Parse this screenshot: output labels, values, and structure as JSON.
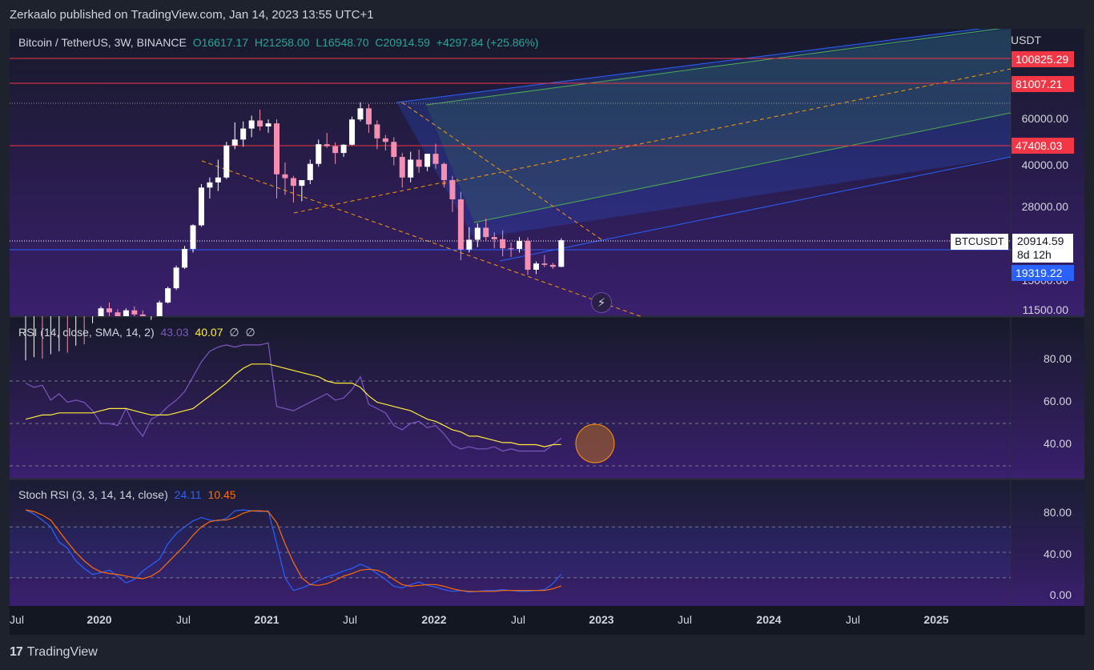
{
  "header": {
    "published": "Zerkaalo published on TradingView.com, Jan 14, 2023 13:55 UTC+1"
  },
  "legend": {
    "symbol": "Bitcoin / TetherUS, 3W, BINANCE",
    "open": "O16617.17",
    "high": "H21258.00",
    "low": "L16548.70",
    "close": "C20914.59",
    "change": "+4297.84 (+25.86%)"
  },
  "rsi_legend": {
    "title": "RSI (14, close, SMA, 14, 2)",
    "rsi_value": "43.03",
    "ma_value": "40.07",
    "null1": "∅",
    "null2": "∅"
  },
  "stoch_legend": {
    "title": "Stoch RSI (3, 3, 14, 14, close)",
    "k_value": "24.11",
    "d_value": "10.45"
  },
  "price_axis": {
    "currency": "USDT",
    "ticks": [
      "60000.00",
      "40000.00",
      "28000.00",
      "11500.00"
    ],
    "partial_tick": "15000.00",
    "tags": [
      {
        "label": "100825.29",
        "color": "#f23645"
      },
      {
        "label": "81007.21",
        "color": "#f23645"
      },
      {
        "label": "47408.03",
        "color": "#f23645"
      },
      {
        "label": "19319.22",
        "color": "#2962ff"
      }
    ],
    "symbol_tag": "BTCUSDT",
    "last_price": "20914.59",
    "countdown": "8d 12h"
  },
  "rsi_axis": {
    "ticks": [
      "80.00",
      "60.00",
      "40.00"
    ]
  },
  "stoch_axis": {
    "ticks": [
      "80.00",
      "40.00",
      "0.00"
    ]
  },
  "time_axis": [
    {
      "label": "Jul",
      "major": false
    },
    {
      "label": "2020",
      "major": true
    },
    {
      "label": "Jul",
      "major": false
    },
    {
      "label": "2021",
      "major": true
    },
    {
      "label": "Jul",
      "major": false
    },
    {
      "label": "2022",
      "major": true
    },
    {
      "label": "Jul",
      "major": false
    },
    {
      "label": "2023",
      "major": true
    },
    {
      "label": "Jul",
      "major": false
    },
    {
      "label": "2024",
      "major": true
    },
    {
      "label": "Jul",
      "major": false
    },
    {
      "label": "2025",
      "major": true
    }
  ],
  "footer": {
    "brand": "TradingView",
    "logo": "17"
  },
  "icons": {
    "flash": "lightning-icon"
  },
  "colors": {
    "up": "#ffffff",
    "down": "#f48fb1",
    "rsi": "#7e57c2",
    "rsi_ma": "#ffeb3b",
    "stoch_k": "#2962ff",
    "stoch_d": "#ff6d00",
    "resistance": "#f23645",
    "support": "#2962ff"
  },
  "chart_data": {
    "type": "candlestick",
    "timeframe": "3W",
    "y_scale": "log",
    "horizontal_levels": [
      100825.29,
      81007.21,
      47408.03,
      19319.22
    ],
    "candles": [
      {
        "o": 7100,
        "h": 7400,
        "l": 6900,
        "c": 7200
      },
      {
        "o": 7200,
        "h": 7600,
        "l": 7000,
        "c": 7300
      },
      {
        "o": 7300,
        "h": 7500,
        "l": 6500,
        "c": 6700
      },
      {
        "o": 6700,
        "h": 7800,
        "l": 6600,
        "c": 7500
      },
      {
        "o": 7500,
        "h": 8000,
        "l": 7300,
        "c": 7700
      },
      {
        "o": 7700,
        "h": 7900,
        "l": 7400,
        "c": 7600
      },
      {
        "o": 7600,
        "h": 8400,
        "l": 7500,
        "c": 8200
      },
      {
        "o": 8200,
        "h": 8500,
        "l": 7600,
        "c": 7800
      },
      {
        "o": 7800,
        "h": 10200,
        "l": 7700,
        "c": 10000
      },
      {
        "o": 10000,
        "h": 11800,
        "l": 9800,
        "c": 11600
      },
      {
        "o": 11600,
        "h": 12200,
        "l": 10800,
        "c": 11200
      },
      {
        "o": 11200,
        "h": 11500,
        "l": 10200,
        "c": 10600
      },
      {
        "o": 10600,
        "h": 11600,
        "l": 10400,
        "c": 11400
      },
      {
        "o": 11400,
        "h": 11800,
        "l": 10800,
        "c": 11000
      },
      {
        "o": 11000,
        "h": 11400,
        "l": 8800,
        "c": 9200
      },
      {
        "o": 9200,
        "h": 10500,
        "l": 9000,
        "c": 10300
      },
      {
        "o": 10300,
        "h": 12400,
        "l": 10100,
        "c": 12200
      },
      {
        "o": 12200,
        "h": 14000,
        "l": 12100,
        "c": 13800
      },
      {
        "o": 13800,
        "h": 16800,
        "l": 13600,
        "c": 16500
      },
      {
        "o": 16500,
        "h": 19900,
        "l": 16300,
        "c": 19400
      },
      {
        "o": 19400,
        "h": 24000,
        "l": 18800,
        "c": 23800
      },
      {
        "o": 23800,
        "h": 34000,
        "l": 23500,
        "c": 33000
      },
      {
        "o": 33000,
        "h": 36000,
        "l": 30000,
        "c": 34500
      },
      {
        "o": 34500,
        "h": 42000,
        "l": 32000,
        "c": 36000
      },
      {
        "o": 36000,
        "h": 49000,
        "l": 35500,
        "c": 47500
      },
      {
        "o": 47500,
        "h": 58000,
        "l": 46000,
        "c": 50000
      },
      {
        "o": 50000,
        "h": 58500,
        "l": 47000,
        "c": 55000
      },
      {
        "o": 55000,
        "h": 61500,
        "l": 51000,
        "c": 59000
      },
      {
        "o": 59000,
        "h": 64800,
        "l": 54000,
        "c": 56000
      },
      {
        "o": 56000,
        "h": 59500,
        "l": 53000,
        "c": 57500
      },
      {
        "o": 57500,
        "h": 59600,
        "l": 30000,
        "c": 37000
      },
      {
        "o": 37000,
        "h": 41000,
        "l": 31000,
        "c": 35800
      },
      {
        "o": 35800,
        "h": 36500,
        "l": 29000,
        "c": 33500
      },
      {
        "o": 33500,
        "h": 35000,
        "l": 29300,
        "c": 35200
      },
      {
        "o": 35200,
        "h": 42000,
        "l": 34000,
        "c": 40500
      },
      {
        "o": 40500,
        "h": 50000,
        "l": 39500,
        "c": 48000
      },
      {
        "o": 48000,
        "h": 52900,
        "l": 46500,
        "c": 47200
      },
      {
        "o": 47200,
        "h": 48800,
        "l": 40500,
        "c": 44500
      },
      {
        "o": 44500,
        "h": 48000,
        "l": 43000,
        "c": 47800
      },
      {
        "o": 47800,
        "h": 61000,
        "l": 47500,
        "c": 59500
      },
      {
        "o": 59500,
        "h": 69000,
        "l": 58500,
        "c": 65500
      },
      {
        "o": 65500,
        "h": 68000,
        "l": 53000,
        "c": 57000
      },
      {
        "o": 57000,
        "h": 59000,
        "l": 46000,
        "c": 50500
      },
      {
        "o": 50500,
        "h": 52000,
        "l": 45500,
        "c": 49000
      },
      {
        "o": 49000,
        "h": 51000,
        "l": 40000,
        "c": 43000
      },
      {
        "o": 43000,
        "h": 44500,
        "l": 33000,
        "c": 36000
      },
      {
        "o": 36000,
        "h": 45000,
        "l": 34500,
        "c": 42000
      },
      {
        "o": 42000,
        "h": 45800,
        "l": 37500,
        "c": 39500
      },
      {
        "o": 39500,
        "h": 44000,
        "l": 38000,
        "c": 44200
      },
      {
        "o": 44200,
        "h": 48200,
        "l": 38800,
        "c": 40500
      },
      {
        "o": 40500,
        "h": 41000,
        "l": 33000,
        "c": 35200
      },
      {
        "o": 35200,
        "h": 36500,
        "l": 26700,
        "c": 29800
      },
      {
        "o": 29800,
        "h": 31800,
        "l": 17600,
        "c": 19300
      },
      {
        "o": 19300,
        "h": 23400,
        "l": 18800,
        "c": 21000
      },
      {
        "o": 21000,
        "h": 24200,
        "l": 19700,
        "c": 23300
      },
      {
        "o": 23300,
        "h": 25200,
        "l": 20800,
        "c": 21500
      },
      {
        "o": 21500,
        "h": 22400,
        "l": 19500,
        "c": 21100
      },
      {
        "o": 21100,
        "h": 22800,
        "l": 18200,
        "c": 19500
      },
      {
        "o": 19500,
        "h": 20500,
        "l": 18100,
        "c": 19400
      },
      {
        "o": 19400,
        "h": 21500,
        "l": 18800,
        "c": 20800
      },
      {
        "o": 20800,
        "h": 21400,
        "l": 15500,
        "c": 16200
      },
      {
        "o": 16200,
        "h": 17400,
        "l": 15600,
        "c": 17100
      },
      {
        "o": 17100,
        "h": 18400,
        "l": 16600,
        "c": 16900
      },
      {
        "o": 16900,
        "h": 17200,
        "l": 16300,
        "c": 16617
      },
      {
        "o": 16617.17,
        "h": 21258,
        "l": 16548.7,
        "c": 20914.59
      }
    ],
    "rsi": [
      69,
      67,
      68,
      61,
      64,
      60,
      61,
      60,
      56,
      50,
      50,
      49,
      57,
      49,
      44,
      52,
      54,
      58,
      61,
      65,
      72,
      79,
      84,
      86,
      87,
      86,
      87,
      87,
      87,
      88,
      58,
      57,
      56,
      58,
      60,
      62,
      64,
      61,
      62,
      66,
      72,
      59,
      57,
      55,
      49,
      47,
      50,
      51,
      48,
      49,
      45,
      40,
      38,
      39,
      38,
      38,
      39,
      37,
      38,
      37,
      37,
      37,
      37,
      40,
      43.03
    ],
    "rsi_ma": [
      52,
      53,
      54,
      54,
      55,
      55,
      55,
      55,
      55,
      56,
      57,
      57,
      57,
      56,
      55,
      54,
      54,
      54,
      55,
      56,
      57,
      60,
      63,
      66,
      69,
      73,
      76,
      78,
      78,
      78,
      77,
      76,
      75,
      74,
      73,
      72,
      70,
      69,
      69,
      69,
      67,
      63,
      60,
      59,
      58,
      57,
      56,
      54,
      52,
      51,
      49,
      47,
      46,
      44,
      44,
      43,
      42,
      41,
      41,
      40,
      40,
      40,
      39,
      40,
      40.07
    ],
    "stoch_k": [
      100,
      95,
      88,
      80,
      62,
      55,
      40,
      31,
      24,
      26,
      29,
      22,
      14,
      18,
      28,
      35,
      42,
      60,
      72,
      80,
      87,
      91,
      88,
      87,
      90,
      99,
      100,
      99,
      98,
      99,
      60,
      20,
      5,
      8,
      12,
      17,
      21,
      24,
      28,
      31,
      36,
      32,
      25,
      18,
      10,
      8,
      12,
      15,
      11,
      9,
      6,
      4,
      5,
      3,
      4,
      5,
      5,
      6,
      5,
      4,
      4,
      5,
      6,
      13,
      24.11
    ],
    "stoch_d": [
      100,
      98,
      94,
      88,
      75,
      62,
      50,
      40,
      32,
      27,
      25,
      24,
      22,
      20,
      19,
      22,
      28,
      38,
      48,
      58,
      70,
      80,
      86,
      88,
      88,
      91,
      96,
      99,
      99,
      98,
      85,
      60,
      38,
      20,
      12,
      11,
      13,
      17,
      22,
      25,
      29,
      30,
      29,
      25,
      18,
      12,
      10,
      11,
      12,
      12,
      10,
      7,
      5,
      4,
      4,
      4,
      4,
      5,
      5,
      5,
      5,
      5,
      5,
      7,
      10.45
    ]
  }
}
